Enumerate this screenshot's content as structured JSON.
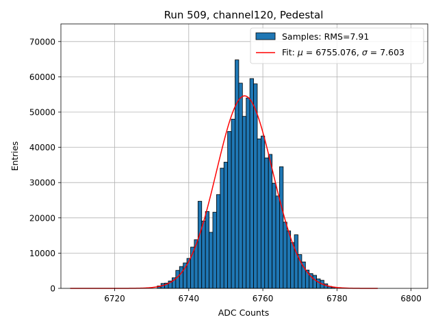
{
  "chart_data": {
    "type": "bar",
    "title": "Run 509, channel120, Pedestal",
    "xlabel": "ADC Counts",
    "ylabel": "Entries",
    "xlim": [
      6705.5,
      6804.5
    ],
    "ylim": [
      0,
      75000
    ],
    "xticks": [
      6720,
      6740,
      6760,
      6780,
      6800
    ],
    "yticks": [
      0,
      10000,
      20000,
      30000,
      40000,
      50000,
      60000,
      70000
    ],
    "grid": true,
    "legend_position": "top-right",
    "bin_width": 1,
    "histogram": {
      "name": "Samples: RMS=7.91",
      "bin_centers": [
        6732,
        6733,
        6734,
        6735,
        6736,
        6737,
        6738,
        6739,
        6740,
        6741,
        6742,
        6743,
        6744,
        6745,
        6746,
        6747,
        6748,
        6749,
        6750,
        6751,
        6752,
        6753,
        6754,
        6755,
        6756,
        6757,
        6758,
        6759,
        6760,
        6761,
        6762,
        6763,
        6764,
        6765,
        6766,
        6767,
        6768,
        6769,
        6770,
        6771,
        6772,
        6773,
        6774,
        6775,
        6776,
        6777,
        6778,
        6779
      ],
      "counts": [
        700,
        1400,
        1500,
        2100,
        3000,
        5100,
        6200,
        7200,
        8500,
        11700,
        13800,
        24700,
        19100,
        21800,
        15900,
        21600,
        26600,
        34100,
        35800,
        44500,
        48000,
        64800,
        58200,
        48800,
        54000,
        59500,
        58000,
        42400,
        43200,
        37000,
        38000,
        29800,
        26200,
        34500,
        18800,
        16300,
        13000,
        15200,
        9600,
        7500,
        5200,
        4200,
        3700,
        2700,
        2300,
        1300,
        600,
        300
      ],
      "color": "#1f77b4"
    },
    "fit": {
      "name": "Fit: μ = 6755.076, σ = 7.603",
      "legend_prefix": "Fit: ",
      "mu": 6755.076,
      "sigma": 7.603,
      "amplitude": 54600,
      "x_range": [
        6708,
        6791
      ],
      "color": "#ff0000"
    }
  }
}
